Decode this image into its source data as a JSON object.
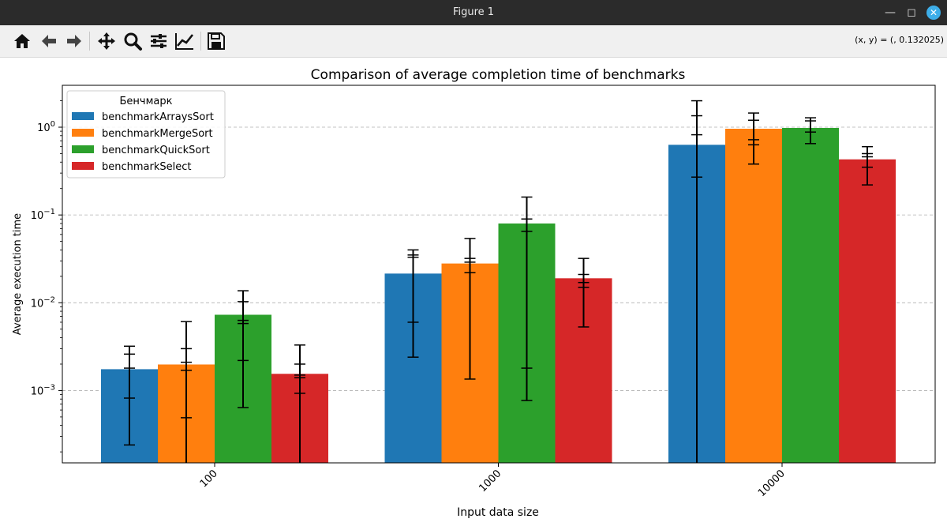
{
  "window": {
    "title": "Figure 1"
  },
  "toolbar": {
    "buttons": [
      "home-icon",
      "back-icon",
      "forward-icon",
      "pan-icon",
      "zoom-icon",
      "subplots-icon",
      "customize-icon",
      "save-icon"
    ],
    "coords": "(x, y) = (, 0.132025)"
  },
  "chart_data": {
    "type": "bar",
    "title": "Comparison of average completion time of benchmarks",
    "xlabel": "Input data size",
    "ylabel": "Average execution time",
    "yscale": "log",
    "ylim": [
      0.00015,
      3.0
    ],
    "yticks": [
      {
        "value": 0.001,
        "base": "10",
        "exp": "−3"
      },
      {
        "value": 0.01,
        "base": "10",
        "exp": "−2"
      },
      {
        "value": 0.1,
        "base": "10",
        "exp": "−1"
      },
      {
        "value": 1,
        "base": "10",
        "exp": "0"
      }
    ],
    "grid": "y-dashed",
    "categories": [
      "100",
      "1000",
      "10000"
    ],
    "legend": {
      "title": "Бенчмарк",
      "placement": "upper-left"
    },
    "series": [
      {
        "name": "benchmarkArraysSort",
        "color": "#1f77b4",
        "values": [
          0.00175,
          0.0215,
          0.63
        ],
        "errorbars": [
          {
            "low": 0.00024,
            "high": 0.0032,
            "caps": [
              0.00024,
              0.00082,
              0.0018,
              0.0026,
              0.0032
            ]
          },
          {
            "low": 0.0024,
            "high": 0.04,
            "caps": [
              0.0024,
              0.006,
              0.033,
              0.035,
              0.04
            ]
          },
          {
            "low": 0.00015,
            "high": 2.0,
            "caps": [
              0.27,
              0.82,
              1.35,
              2.0
            ]
          }
        ]
      },
      {
        "name": "benchmarkMergeSort",
        "color": "#ff7f0e",
        "values": [
          0.00198,
          0.028,
          0.96
        ],
        "errorbars": [
          {
            "low": 0.00015,
            "high": 0.0061,
            "caps": [
              0.00049,
              0.0017,
              0.0021,
              0.003,
              0.0061
            ]
          },
          {
            "low": 0.00135,
            "high": 0.054,
            "caps": [
              0.00135,
              0.022,
              0.029,
              0.032,
              0.054
            ]
          },
          {
            "low": 0.38,
            "high": 1.45,
            "caps": [
              0.38,
              0.63,
              0.72,
              1.2,
              1.45
            ]
          }
        ]
      },
      {
        "name": "benchmarkQuickSort",
        "color": "#2ca02c",
        "values": [
          0.0073,
          0.08,
          0.98
        ],
        "errorbars": [
          {
            "low": 0.00064,
            "high": 0.0137,
            "caps": [
              0.00064,
              0.0022,
              0.0058,
              0.0063,
              0.0103,
              0.0137
            ]
          },
          {
            "low": 0.00077,
            "high": 0.16,
            "caps": [
              0.00077,
              0.0018,
              0.065,
              0.09,
              0.16
            ]
          },
          {
            "low": 0.65,
            "high": 1.28,
            "caps": [
              0.65,
              0.88,
              1.18,
              1.28
            ]
          }
        ]
      },
      {
        "name": "benchmarkSelect",
        "color": "#d62728",
        "values": [
          0.00155,
          0.019,
          0.43
        ],
        "errorbars": [
          {
            "low": 0.00015,
            "high": 0.0033,
            "caps": [
              0.00093,
              0.0014,
              0.0015,
              0.002,
              0.0033
            ]
          },
          {
            "low": 0.0053,
            "high": 0.032,
            "caps": [
              0.0053,
              0.015,
              0.017,
              0.021,
              0.032
            ]
          },
          {
            "low": 0.22,
            "high": 0.6,
            "caps": [
              0.22,
              0.35,
              0.46,
              0.5,
              0.6
            ]
          }
        ]
      }
    ]
  }
}
